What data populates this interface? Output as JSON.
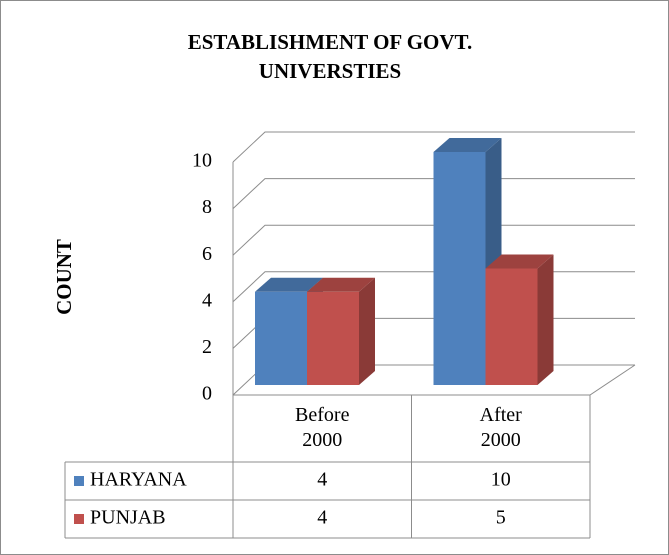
{
  "chart_data": {
    "type": "bar3d",
    "title": "ESTABLISHMENT OF GOVT. UNIVERSTIES",
    "y_label": "COUNT",
    "categories": [
      "Before 2000",
      "After 2000"
    ],
    "series": [
      {
        "name": "HARYANA",
        "color": "#4f81bd",
        "values": [
          4,
          10
        ]
      },
      {
        "name": "PUNJAB",
        "color": "#c0504d",
        "values": [
          4,
          5
        ]
      }
    ],
    "ylim": [
      0,
      10
    ],
    "yticks": [
      0,
      2,
      4,
      6,
      8,
      10
    ],
    "grid": true,
    "data_table": true
  }
}
